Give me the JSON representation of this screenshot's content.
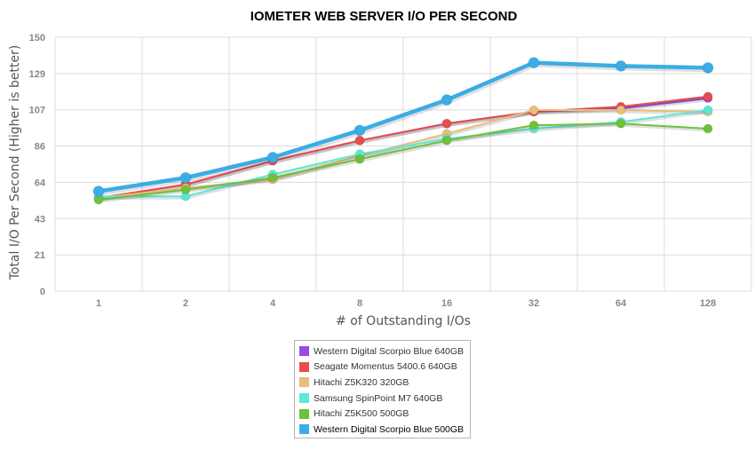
{
  "chart_data": {
    "type": "line",
    "title": "IOMETER WEB SERVER I/O PER SECOND",
    "xlabel": "# of Outstanding I/Os",
    "ylabel": "Total I/O Per Second (Higher is better)",
    "categories": [
      "1",
      "2",
      "4",
      "8",
      "16",
      "32",
      "64",
      "128"
    ],
    "y_ticks": [
      "0",
      "21",
      "43",
      "64",
      "86",
      "107",
      "129",
      "150"
    ],
    "ylim": [
      0,
      150
    ],
    "grid": true,
    "legend_position": "bottom",
    "series": [
      {
        "name": "Western Digital Scorpio Blue 640GB",
        "color": "#9a4be6",
        "values": [
          55,
          63,
          77,
          89,
          99,
          106,
          108,
          114
        ]
      },
      {
        "name": "Seagate Momentus 5400.6 640GB",
        "color": "#e84c4c",
        "values": [
          55,
          63,
          77,
          89,
          99,
          106,
          109,
          115
        ]
      },
      {
        "name": "Hitachi Z5K320 320GB",
        "color": "#e9bd7c",
        "values": [
          55,
          61,
          66,
          80,
          93,
          107,
          107,
          106
        ]
      },
      {
        "name": "Samsung SpinPoint M7 640GB",
        "color": "#5ce8d2",
        "values": [
          56,
          56,
          69,
          81,
          90,
          96,
          100,
          107
        ]
      },
      {
        "name": "Hitachi Z5K500 500GB",
        "color": "#6fc13a",
        "values": [
          54,
          60,
          67,
          78,
          89,
          98,
          99,
          96
        ]
      },
      {
        "name": "Western Digital Scorpio Blue 500GB",
        "color": "#3aade6",
        "values": [
          59,
          67,
          79,
          95,
          113,
          135,
          133,
          132
        ]
      }
    ]
  }
}
